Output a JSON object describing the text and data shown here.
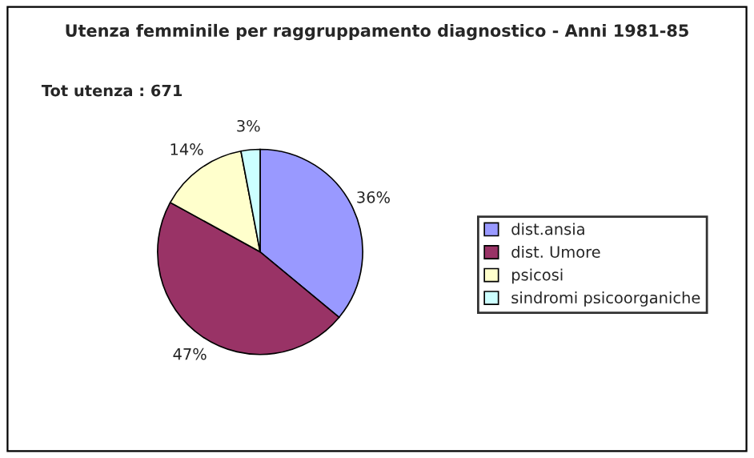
{
  "chart_data": {
    "type": "pie",
    "title": "Utenza femminile per raggruppamento diagnostico - Anni 1981-85",
    "annotations": [
      "Tot utenza : 671"
    ],
    "categories": [
      "dist.ansia",
      "dist. Umore",
      "psicosi",
      "sindromi psicoorganiche"
    ],
    "values": [
      36,
      47,
      14,
      3
    ],
    "value_labels": [
      "36%",
      "47%",
      "14%",
      "3%"
    ],
    "colors": [
      "#9999ff",
      "#993366",
      "#ffffcc",
      "#ccffff"
    ],
    "legend": "right"
  }
}
